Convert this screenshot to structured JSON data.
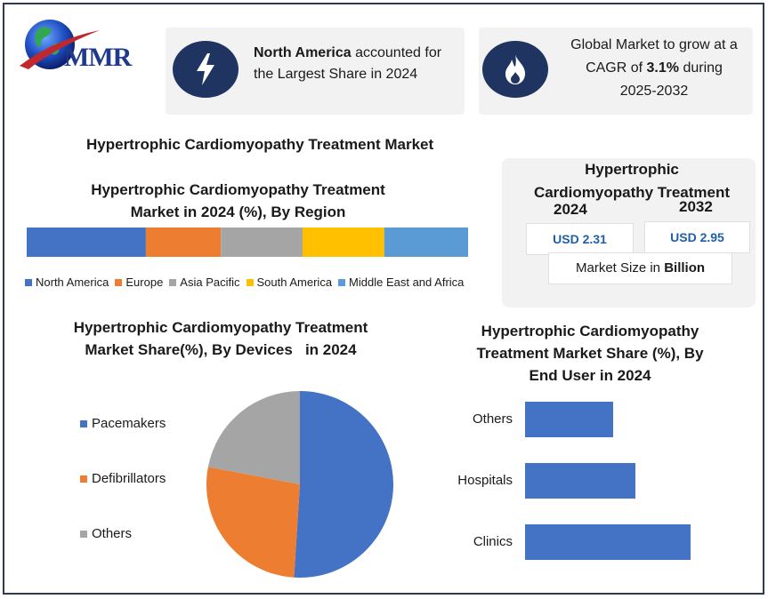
{
  "brand": {
    "logo_text": "MMR"
  },
  "info_left": {
    "bold": "North America",
    "rest1": " accounted for",
    "line2": "the Largest Share in 2024"
  },
  "info_right": {
    "line1": "Global Market to grow at a",
    "line2a": "CAGR of ",
    "line2b": "3.1%",
    "line2c": " during",
    "line3": "2025-2032"
  },
  "main_title": "Hypertrophic Cardiomyopathy Treatment Market",
  "market_size": {
    "title1": "Hypertrophic",
    "title2": "Cardiomyopathy Treatment",
    "year1": "2024",
    "year2": "2032",
    "value1": "USD 2.31",
    "value2": "USD 2.95",
    "unit_prefix": "Market Size in ",
    "unit_bold": "Billion"
  },
  "icons": {
    "left": "lightning-bolt-icon",
    "right": "flame-icon"
  },
  "colors": {
    "blue": "#4472c4",
    "orange": "#ed7d31",
    "gray": "#a5a5a5",
    "yellow": "#ffc000",
    "lightblue": "#5b9bd5",
    "navy": "#1f3461"
  },
  "chart_data": [
    {
      "type": "bar",
      "orientation": "stacked-horizontal",
      "title_line1": "Hypertrophic Cardiomyopathy Treatment",
      "title_line2": "Market in 2024 (%), By Region",
      "series": [
        {
          "name": "North America",
          "value": 27,
          "color": "#4472c4"
        },
        {
          "name": "Europe",
          "value": 17,
          "color": "#ed7d31"
        },
        {
          "name": "Asia Pacific",
          "value": 18.5,
          "color": "#a5a5a5"
        },
        {
          "name": "South America",
          "value": 18.5,
          "color": "#ffc000"
        },
        {
          "name": "Middle East and Africa",
          "value": 19,
          "color": "#5b9bd5"
        }
      ],
      "legend": "bottom"
    },
    {
      "type": "pie",
      "title_line1": "Hypertrophic Cardiomyopathy Treatment",
      "title_line2": "Market Share(%), By Devices   in 2024",
      "slices": [
        {
          "name": "Pacemakers",
          "value": 51,
          "color": "#4472c4"
        },
        {
          "name": "Defibrillators",
          "value": 27,
          "color": "#ed7d31"
        },
        {
          "name": "Others",
          "value": 22,
          "color": "#a5a5a5"
        }
      ],
      "legend": "left"
    },
    {
      "type": "bar",
      "orientation": "horizontal",
      "title_line1": "Hypertrophic Cardiomyopathy",
      "title_line2": "Treatment Market Share (%), By",
      "title_line3": "End User in 2024",
      "categories": [
        "Others",
        "Hospitals",
        "Clinics"
      ],
      "values": [
        20,
        25,
        37.5
      ],
      "color": "#4472c4"
    }
  ]
}
